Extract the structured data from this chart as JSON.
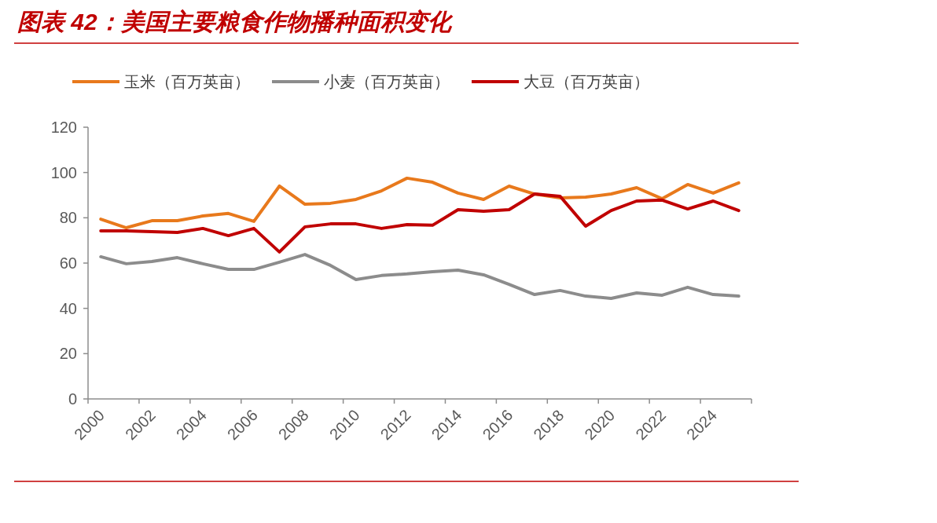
{
  "chart_data": {
    "type": "line",
    "title": "图表 42：美国主要粮食作物播种面积变化",
    "categories": [
      "2000",
      null,
      "2002",
      null,
      "2004",
      null,
      "2006",
      null,
      "2008",
      null,
      "2010",
      null,
      "2012",
      null,
      "2014",
      null,
      "2016",
      null,
      "2018",
      null,
      "2020",
      null,
      "2022",
      null,
      "2024",
      null
    ],
    "series": [
      {
        "name": "玉米（百万英亩）",
        "color": "#e8791c",
        "values": [
          79.4,
          75.6,
          78.7,
          78.7,
          80.8,
          81.9,
          78.4,
          94.0,
          86.0,
          86.4,
          88.1,
          91.9,
          97.5,
          95.7,
          90.9,
          88.1,
          94.0,
          90.5,
          88.8,
          89.1,
          90.5,
          93.3,
          88.4,
          94.7,
          90.9,
          95.4
        ]
      },
      {
        "name": "小麦（百万英亩）",
        "color": "#8c8c8c",
        "values": [
          62.8,
          59.7,
          60.7,
          62.4,
          59.7,
          57.2,
          57.2,
          60.4,
          63.8,
          59.0,
          52.7,
          54.5,
          55.2,
          56.2,
          56.9,
          54.8,
          50.6,
          46.1,
          47.9,
          45.4,
          44.4,
          46.8,
          45.8,
          49.3,
          46.1,
          45.4
        ]
      },
      {
        "name": "大豆（百万英亩）",
        "color": "#c00000",
        "values": [
          74.2,
          74.2,
          73.9,
          73.5,
          75.3,
          72.1,
          75.3,
          64.9,
          76.0,
          77.3,
          77.3,
          75.3,
          77.0,
          76.7,
          83.6,
          82.9,
          83.6,
          90.5,
          89.5,
          76.3,
          83.2,
          87.4,
          87.8,
          83.9,
          87.4,
          83.2
        ]
      }
    ],
    "ylim": [
      0,
      120
    ],
    "yticks": [
      0,
      20,
      40,
      60,
      80,
      100,
      120
    ],
    "grid": false,
    "legend": "top",
    "line_style": "solid"
  }
}
